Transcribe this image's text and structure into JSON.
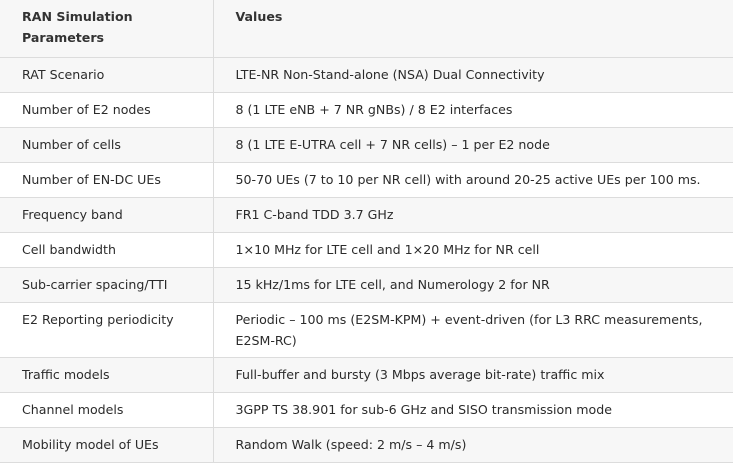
{
  "header": {
    "col1": "RAN Simulation Parameters",
    "col2": "Values"
  },
  "rows": [
    {
      "param": "RAT Scenario",
      "value": "LTE-NR Non-Stand-alone (NSA) Dual Connectivity"
    },
    {
      "param": "Number of E2 nodes",
      "value": "8 (1 LTE eNB + 7 NR gNBs) / 8 E2 interfaces"
    },
    {
      "param": "Number of cells",
      "value": "8 (1 LTE E-UTRA cell + 7 NR cells) – 1 per E2 node"
    },
    {
      "param": "Number of EN-DC UEs",
      "value": "50-70 UEs (7 to 10 per NR cell) with around 20-25 active UEs per 100 ms."
    },
    {
      "param": "Frequency band",
      "value": "FR1 C-band TDD 3.7 GHz"
    },
    {
      "param": "Cell bandwidth",
      "value": "1×10 MHz for LTE cell and 1×20 MHz for NR cell"
    },
    {
      "param": "Sub-carrier spacing/TTI",
      "value": "15 kHz/1ms for LTE cell, and Numerology 2 for NR"
    },
    {
      "param": "E2 Reporting periodicity",
      "value": "Periodic – 100 ms (E2SM-KPM) + event-driven (for L3 RRC measurements, E2SM-RC)"
    },
    {
      "param": "Traffic models",
      "value": "Full-buffer and bursty (3 Mbps average bit-rate) traffic mix"
    },
    {
      "param": "Channel models",
      "value": "3GPP TS 38.901 for sub-6 GHz and SISO transmission mode"
    },
    {
      "param": "Mobility model of UEs",
      "value": "Random Walk (speed: 2 m/s – 4 m/s)"
    }
  ]
}
